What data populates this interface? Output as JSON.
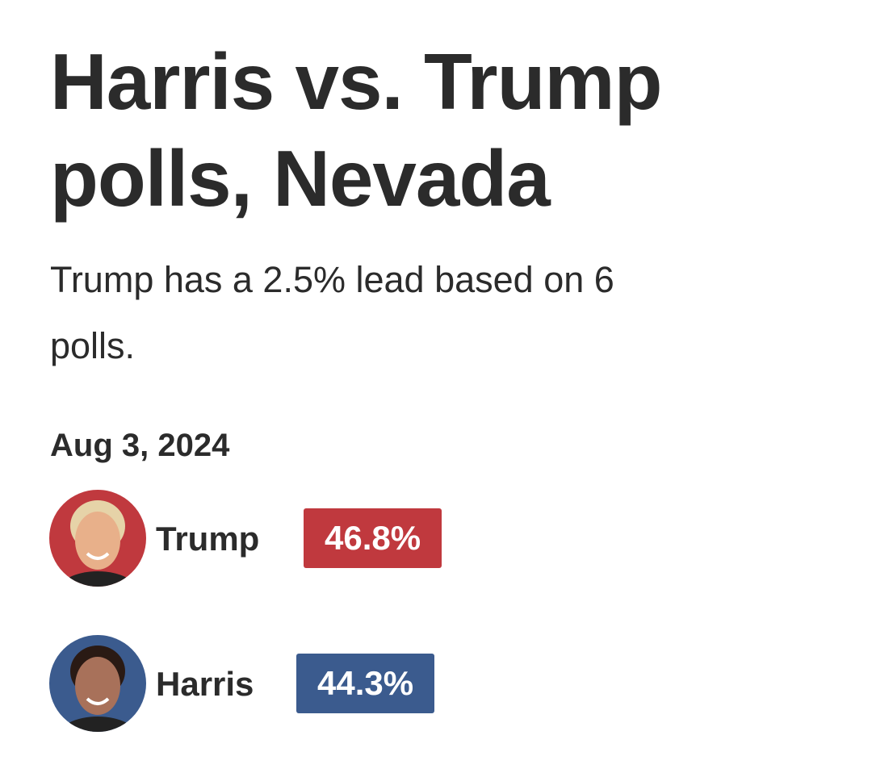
{
  "header": {
    "title_lines": [
      "Harris vs. Trump",
      "polls, Nevada"
    ],
    "subtitle_lines": [
      "Trump has a 2.5% lead based on 6",
      "polls."
    ]
  },
  "date": "Aug 3, 2024",
  "candidates": [
    {
      "name": "Trump",
      "share": "46.8%",
      "color": "#c0393e",
      "skin": "#e8b08a",
      "hair": "#e6d3a8"
    },
    {
      "name": "Harris",
      "share": "44.3%",
      "color": "#3b5b8e",
      "skin": "#a8715a",
      "hair": "#2a1a14"
    }
  ]
}
